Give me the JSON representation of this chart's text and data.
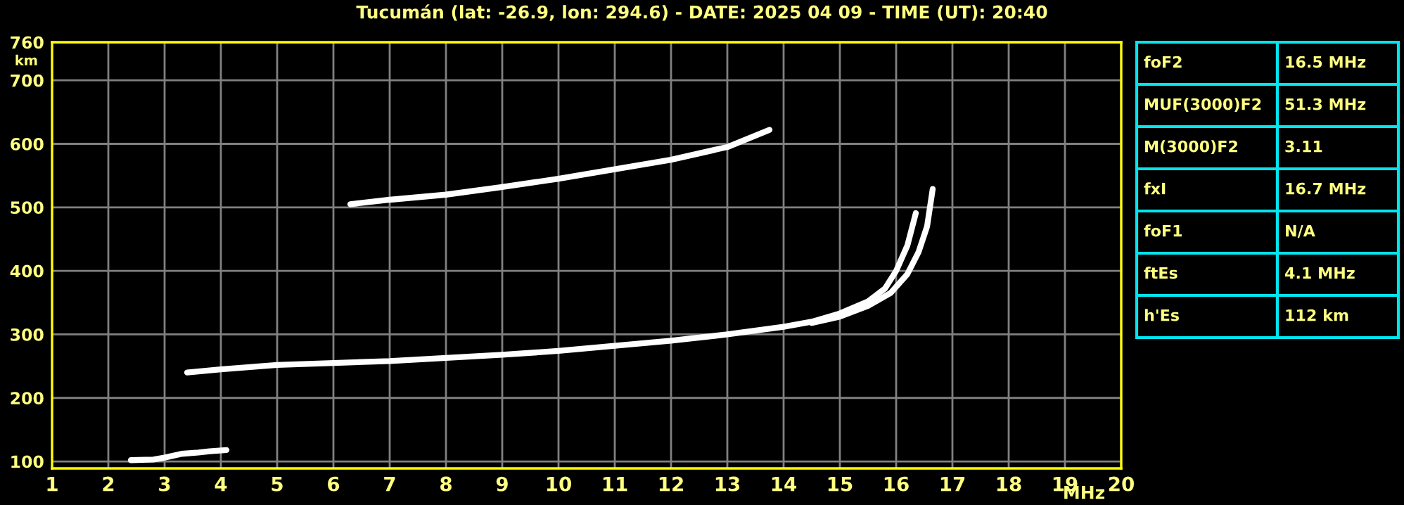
{
  "chart_data": {
    "type": "line",
    "title": "Tucumán (lat: -26.9, lon: 294.6) - DATE: 2025 04 09 - TIME (UT): 20:40",
    "xlabel": "MHz",
    "ylabel": "km",
    "xlim": [
      1,
      20
    ],
    "xticks": [
      1,
      2,
      3,
      4,
      5,
      6,
      7,
      8,
      9,
      10,
      11,
      12,
      13,
      14,
      15,
      16,
      17,
      18,
      19,
      20
    ],
    "ylim": [
      89,
      760
    ],
    "yticks": [
      100,
      200,
      300,
      400,
      500,
      600,
      700,
      760
    ],
    "grid": true,
    "legend": false,
    "marker": "none",
    "line_style": "solid",
    "series": [
      {
        "color": "#ffffff",
        "x": [
          2.4,
          2.8,
          3.0,
          3.3,
          3.6,
          3.8,
          4.1
        ],
        "values": [
          102,
          103,
          106,
          112,
          114,
          116,
          118
        ]
      },
      {
        "color": "#ffffff",
        "x": [
          3.4,
          4,
          5,
          6,
          7,
          8,
          9,
          10,
          11,
          12,
          13,
          14,
          14.5,
          15,
          15.5,
          15.8,
          16.0,
          16.2,
          16.35
        ],
        "values": [
          240,
          245,
          252,
          255,
          258,
          263,
          268,
          274,
          282,
          290,
          300,
          312,
          320,
          333,
          352,
          372,
          400,
          440,
          491
        ]
      },
      {
        "color": "#ffffff",
        "x": [
          14.5,
          15,
          15.5,
          15.9,
          16.2,
          16.4,
          16.55,
          16.65
        ],
        "values": [
          318,
          328,
          345,
          365,
          395,
          430,
          470,
          529
        ]
      },
      {
        "color": "#ffffff",
        "x": [
          6.3,
          7,
          8,
          9,
          10,
          11,
          12,
          13,
          13.75
        ],
        "values": [
          505,
          512,
          520,
          532,
          545,
          560,
          575,
          595,
          622
        ]
      }
    ],
    "annotations": [
      "foF2",
      "16.5 MHz",
      "MUF(3000)F2",
      "51.3 MHz",
      "M(3000)F2",
      "3.11",
      "fxI",
      "16.7 MHz",
      "foF1",
      "N/A",
      "ftEs",
      "4.1 MHz",
      "h'Es",
      "112 km"
    ]
  }
}
